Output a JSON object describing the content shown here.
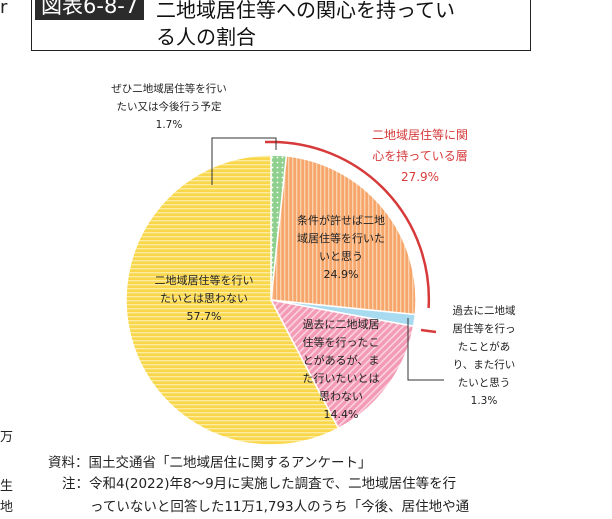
{
  "figure": {
    "badge": "図表6-8-7",
    "title_line1": "二地域居住等への関心を持ってい",
    "title_line2": "る人の割合"
  },
  "side_fragments": {
    "top_left": "r",
    "left_1": "万",
    "left_2": "生",
    "left_3": "地"
  },
  "chart_data": {
    "type": "pie",
    "start_angle": "12 o'clock",
    "direction": "clockwise",
    "slices": [
      {
        "label_lines": [
          "ぜひ二地域居住等を行い",
          "たい又は今後行う予定"
        ],
        "value": 1.7,
        "value_text": "1.7%",
        "color": "#8fd08f",
        "pattern": "dotted"
      },
      {
        "label_lines": [
          "条件が許せば二地",
          "域居住等を行いた",
          "いと思う"
        ],
        "value": 24.9,
        "value_text": "24.9%",
        "color": "#f6a66a",
        "pattern": "vertical-stripes"
      },
      {
        "label_lines": [
          "過去に二地域",
          "居住等を行っ",
          "たことがあ",
          "り、また行い",
          "たいと思う"
        ],
        "value": 1.3,
        "value_text": "1.3%",
        "color": "#a9dbf0",
        "pattern": "plain"
      },
      {
        "label_lines": [
          "過去に二地域居",
          "住等を行ったこ",
          "とがあるが、ま",
          "た行いたいとは",
          "思わない"
        ],
        "value": 14.4,
        "value_text": "14.4%",
        "color": "#f39ab5",
        "pattern": "diagonal-hatch"
      },
      {
        "label_lines": [
          "二地域居住等を行い",
          "たいとは思わない"
        ],
        "value": 57.7,
        "value_text": "57.7%",
        "color": "#f9d64a",
        "pattern": "horizontal-stripes"
      }
    ],
    "annotation": {
      "label_lines": [
        "二地域居住等に関",
        "心を持っている層"
      ],
      "value_text": "27.9%",
      "color": "#d63a3a"
    }
  },
  "footer": {
    "source": "資料：国土交通省「二地域居住に関するアンケート」",
    "note_line1": "注：令和4(2022)年8～9月に実施した調査で、二地域居住等を行",
    "note_line2": "っていないと回答した11万1,793人のうち「今後、居住地や通"
  }
}
